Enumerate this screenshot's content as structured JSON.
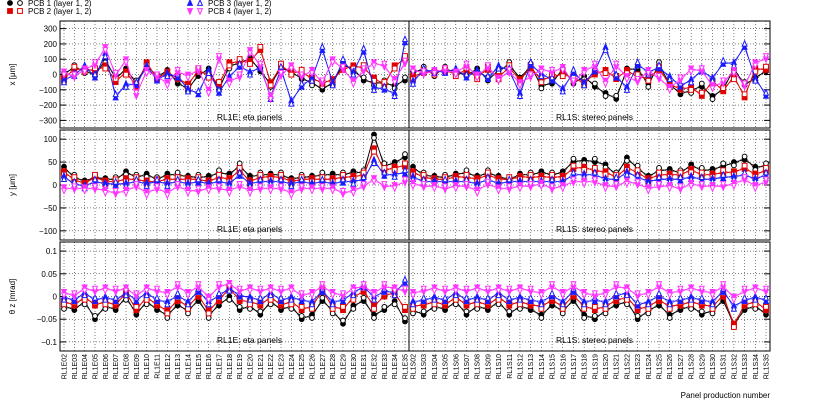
{
  "legend": [
    {
      "label": "PCB 1 (layer 1, 2)",
      "color": "#000000",
      "marker_filled": "circle",
      "marker_open": "circle-open"
    },
    {
      "label": "PCB 2 (layer 1, 2)",
      "color": "#e00000",
      "marker_filled": "square",
      "marker_open": "square-open"
    },
    {
      "label": "PCB 3 (layer 1, 2)",
      "color": "#1a1aff",
      "marker_filled": "triangle-up",
      "marker_open": "triangle-up-open"
    },
    {
      "label": "PCB 4 (layer 1, 2)",
      "color": "#ff33ff",
      "marker_filled": "triangle-down",
      "marker_open": "triangle-down-open"
    }
  ],
  "xlabel": "Panel production number",
  "panel_groups": [
    {
      "label": "RL1E: eta panels"
    },
    {
      "label": "RL1S: stereo panels"
    }
  ],
  "chart_data": [
    {
      "type": "line",
      "ylabel": "x [μm]",
      "ylim": [
        -350,
        350
      ],
      "yticks": [
        -300,
        -200,
        -100,
        0,
        100,
        200,
        300
      ],
      "ytick_labels": [
        "−300",
        "−200",
        "−100",
        "0",
        "100",
        "200",
        "300"
      ],
      "grid": true,
      "annotations": [
        "RL1E: eta panels",
        "RL1S: stereo panels"
      ],
      "categories_eta": [
        "RL1E02",
        "RL1E03",
        "RL1E04",
        "RL1E05",
        "RL1E06",
        "RL1E07",
        "RL1E08",
        "RL1E09",
        "RL1E10",
        "RL1E11",
        "RL1E12",
        "RL1E13",
        "RL1E14",
        "RL1E15",
        "RL1E16",
        "RL1E17",
        "RL1E18",
        "RL1E19",
        "RL1E20",
        "RL1E21",
        "RL1E22",
        "RL1E23",
        "RL1E24",
        "RL1E25",
        "RL1E26",
        "RL1E27",
        "RL1E28",
        "RL1E29",
        "RL1E30",
        "RL1E31",
        "RL1E32",
        "RL1E33",
        "RL1E34",
        "RL1E35"
      ],
      "categories_stereo": [
        "RL1S02",
        "RL1S03",
        "RL1S04",
        "RL1S05",
        "RL1S06",
        "RL1S07",
        "RL1S08",
        "RL1S09",
        "RL1S10",
        "RL1S11",
        "RL1S12",
        "RL1S13",
        "RL1S14",
        "RL1S15",
        "RL1S16",
        "RL1S17",
        "RL1S18",
        "RL1S19",
        "RL1S20",
        "RL1S21",
        "RL1S22",
        "RL1S23",
        "RL1S24",
        "RL1S25",
        "RL1S26",
        "RL1S27",
        "RL1S28",
        "RL1S29",
        "RL1S30",
        "RL1S31",
        "RL1S32",
        "RL1S33",
        "RL1S34",
        "RL1S35"
      ],
      "series": [
        {
          "name": "PCB 1 (layer 1, 2)",
          "color": "#000000",
          "eta": [
            10,
            40,
            30,
            -10,
            100,
            -30,
            40,
            -60,
            70,
            -20,
            30,
            -60,
            -90,
            -10,
            40,
            -100,
            60,
            70,
            110,
            20,
            -60,
            40,
            20,
            -30,
            -50,
            -100,
            -50,
            60,
            40,
            -40,
            -50,
            -60,
            -70,
            -40
          ],
          "stereo": [
            20,
            30,
            10,
            30,
            20,
            -10,
            40,
            -40,
            30,
            60,
            -20,
            50,
            -70,
            -60,
            40,
            -60,
            -10,
            -80,
            -120,
            -160,
            40,
            30,
            -60,
            60,
            -60,
            -130,
            -100,
            -80,
            -140,
            -100,
            40,
            -70,
            -20,
            20
          ]
        },
        {
          "name": "PCB 2 (layer 1, 2)",
          "color": "#e00000",
          "eta": [
            -20,
            30,
            40,
            20,
            60,
            -50,
            20,
            -80,
            80,
            -30,
            20,
            -30,
            -60,
            20,
            0,
            -70,
            80,
            80,
            90,
            160,
            -50,
            50,
            20,
            10,
            -20,
            -60,
            -30,
            30,
            60,
            40,
            -20,
            -70,
            60,
            100
          ],
          "stereo": [
            -10,
            10,
            20,
            20,
            10,
            20,
            -10,
            30,
            -10,
            40,
            -30,
            40,
            -30,
            -20,
            10,
            -30,
            -50,
            0,
            30,
            -30,
            30,
            -20,
            -20,
            30,
            -60,
            -100,
            -80,
            -140,
            -40,
            -110,
            -10,
            -150,
            40,
            30
          ]
        },
        {
          "name": "PCB 3 (layer 1, 2)",
          "color": "#1a1aff",
          "eta": [
            -30,
            -10,
            60,
            -20,
            140,
            -150,
            -60,
            -70,
            60,
            -40,
            10,
            -20,
            -90,
            -130,
            30,
            -120,
            -10,
            50,
            20,
            40,
            -140,
            30,
            -170,
            -80,
            -20,
            160,
            -50,
            80,
            20,
            150,
            -80,
            -100,
            -120,
            210
          ],
          "stereo": [
            -40,
            20,
            30,
            10,
            40,
            -20,
            30,
            -30,
            60,
            20,
            -120,
            60,
            10,
            -40,
            -90,
            10,
            -50,
            20,
            180,
            -20,
            -80,
            60,
            20,
            40,
            -10,
            -80,
            -30,
            20,
            -20,
            70,
            80,
            180,
            -20,
            -140
          ]
        },
        {
          "name": "PCB 4 (layer 1, 2)",
          "color": "#ff33ff",
          "eta": [
            20,
            -20,
            40,
            60,
            180,
            -10,
            100,
            -140,
            30,
            -20,
            -50,
            10,
            0,
            20,
            -100,
            100,
            -40,
            -20,
            160,
            50,
            -140,
            -10,
            60,
            -20,
            30,
            -60,
            100,
            30,
            -40,
            20,
            80,
            50,
            -30,
            70
          ],
          "stereo": [
            40,
            0,
            30,
            20,
            20,
            50,
            0,
            40,
            -20,
            10,
            -50,
            -20,
            40,
            10,
            50,
            -60,
            30,
            50,
            -40,
            50,
            -10,
            -50,
            30,
            -30,
            -80,
            -40,
            40,
            20,
            -70,
            -60,
            30,
            -80,
            80,
            100
          ]
        }
      ]
    },
    {
      "type": "line",
      "ylabel": "y [μm]",
      "ylim": [
        -120,
        120
      ],
      "yticks": [
        -100,
        -50,
        0,
        50,
        100
      ],
      "ytick_labels": [
        "−100",
        "−50",
        "0",
        "50",
        "100"
      ],
      "grid": true,
      "annotations": [
        "RL1E: eta panels",
        "RL1S: stereo panels"
      ],
      "series": [
        {
          "name": "PCB 1 (layer 1, 2)",
          "color": "#000000",
          "eta": [
            40,
            15,
            10,
            15,
            15,
            10,
            30,
            15,
            25,
            10,
            25,
            20,
            20,
            15,
            20,
            25,
            25,
            40,
            20,
            20,
            25,
            20,
            15,
            15,
            20,
            20,
            25,
            20,
            30,
            25,
            110,
            40,
            50,
            60
          ],
          "stereo": [
            40,
            20,
            20,
            15,
            25,
            25,
            20,
            25,
            20,
            10,
            25,
            20,
            30,
            20,
            30,
            50,
            55,
            50,
            45,
            20,
            60,
            35,
            20,
            30,
            35,
            25,
            45,
            30,
            35,
            40,
            50,
            55,
            40,
            40
          ]
        },
        {
          "name": "PCB 2 (layer 1, 2)",
          "color": "#e00000",
          "eta": [
            30,
            10,
            5,
            15,
            10,
            5,
            15,
            10,
            10,
            5,
            15,
            10,
            15,
            10,
            10,
            15,
            15,
            30,
            10,
            15,
            20,
            15,
            10,
            10,
            15,
            10,
            15,
            15,
            20,
            20,
            80,
            30,
            40,
            40
          ],
          "stereo": [
            30,
            15,
            15,
            10,
            20,
            15,
            15,
            20,
            15,
            10,
            20,
            15,
            20,
            15,
            20,
            35,
            40,
            30,
            30,
            15,
            40,
            25,
            15,
            20,
            25,
            20,
            35,
            20,
            25,
            25,
            30,
            35,
            25,
            30
          ]
        },
        {
          "name": "PCB 3 (layer 1, 2)",
          "color": "#1a1aff",
          "eta": [
            20,
            0,
            0,
            5,
            5,
            0,
            5,
            5,
            5,
            5,
            5,
            5,
            5,
            5,
            5,
            5,
            5,
            20,
            5,
            5,
            10,
            5,
            5,
            5,
            5,
            5,
            5,
            5,
            10,
            10,
            55,
            20,
            25,
            25
          ],
          "stereo": [
            20,
            5,
            10,
            5,
            10,
            5,
            5,
            10,
            5,
            5,
            10,
            5,
            10,
            5,
            10,
            20,
            25,
            20,
            15,
            10,
            30,
            15,
            10,
            10,
            15,
            10,
            20,
            10,
            15,
            15,
            20,
            20,
            15,
            20
          ]
        },
        {
          "name": "PCB 4 (layer 1, 2)",
          "color": "#ff33ff",
          "eta": [
            -5,
            -10,
            -5,
            -10,
            -10,
            -20,
            -10,
            -5,
            -15,
            -10,
            -15,
            -5,
            -10,
            -15,
            -5,
            -10,
            -10,
            -5,
            -10,
            -10,
            -5,
            -10,
            -15,
            -10,
            -5,
            -10,
            -5,
            -20,
            -10,
            -5,
            15,
            -5,
            0,
            5
          ],
          "stereo": [
            5,
            -5,
            0,
            -10,
            0,
            -5,
            -10,
            0,
            -5,
            -10,
            0,
            -5,
            5,
            -10,
            0,
            5,
            10,
            5,
            0,
            -5,
            10,
            0,
            -5,
            -5,
            0,
            -10,
            5,
            -5,
            0,
            -5,
            5,
            10,
            0,
            5
          ]
        }
      ]
    },
    {
      "type": "line",
      "ylabel": "θ z [mrad]",
      "ylim": [
        -0.12,
        0.12
      ],
      "yticks": [
        -0.1,
        -0.05,
        0,
        0.05,
        0.1
      ],
      "ytick_labels": [
        "−0.1",
        "−0.05",
        "0",
        "0.05",
        "0.1"
      ],
      "grid": true,
      "annotations": [
        "RL1E: eta panels",
        "RL1S: stereo panels"
      ],
      "series": [
        {
          "name": "PCB 1 (layer 1, 2)",
          "color": "#000000",
          "eta": [
            -0.02,
            -0.03,
            -0.01,
            -0.05,
            -0.02,
            -0.03,
            0.0,
            -0.04,
            -0.01,
            -0.03,
            -0.04,
            -0.02,
            -0.03,
            -0.01,
            -0.04,
            -0.02,
            0.0,
            -0.03,
            -0.02,
            -0.04,
            -0.01,
            -0.03,
            -0.02,
            -0.05,
            -0.04,
            -0.01,
            -0.03,
            -0.06,
            -0.02,
            -0.01,
            -0.04,
            -0.03,
            -0.01,
            -0.055
          ],
          "stereo": [
            -0.03,
            -0.04,
            -0.02,
            -0.03,
            -0.01,
            -0.04,
            -0.02,
            -0.03,
            -0.01,
            -0.04,
            -0.02,
            -0.03,
            -0.04,
            -0.02,
            -0.03,
            -0.01,
            -0.04,
            -0.05,
            -0.03,
            -0.02,
            -0.01,
            -0.05,
            -0.03,
            -0.02,
            -0.04,
            -0.03,
            -0.02,
            -0.04,
            -0.03,
            -0.01,
            -0.06,
            -0.03,
            -0.02,
            -0.04
          ]
        },
        {
          "name": "PCB 2 (layer 1, 2)",
          "color": "#e00000",
          "eta": [
            -0.01,
            -0.02,
            0.0,
            -0.02,
            -0.01,
            -0.02,
            0.01,
            -0.03,
            0.0,
            -0.02,
            -0.03,
            -0.01,
            -0.02,
            0.0,
            -0.03,
            -0.01,
            0.02,
            -0.01,
            -0.01,
            -0.02,
            0.0,
            -0.02,
            -0.01,
            -0.03,
            -0.02,
            0.01,
            -0.02,
            -0.03,
            0.0,
            0.01,
            -0.02,
            0.0,
            0.01,
            -0.03
          ],
          "stereo": [
            -0.02,
            -0.02,
            -0.01,
            -0.02,
            0.0,
            -0.02,
            -0.01,
            -0.02,
            0.0,
            -0.02,
            -0.01,
            -0.02,
            -0.02,
            -0.01,
            -0.02,
            0.0,
            -0.02,
            -0.03,
            -0.02,
            -0.01,
            0.0,
            -0.03,
            -0.02,
            -0.01,
            -0.02,
            -0.02,
            -0.01,
            -0.02,
            -0.02,
            0.0,
            -0.06,
            -0.02,
            -0.01,
            -0.03
          ]
        },
        {
          "name": "PCB 3 (layer 1, 2)",
          "color": "#1a1aff",
          "eta": [
            0.0,
            -0.01,
            0.01,
            -0.01,
            0.0,
            -0.01,
            0.01,
            -0.01,
            0.01,
            -0.01,
            -0.01,
            0.0,
            -0.01,
            0.01,
            -0.01,
            0.0,
            0.02,
            0.0,
            0.0,
            -0.01,
            0.01,
            -0.01,
            0.0,
            -0.01,
            -0.01,
            0.01,
            -0.01,
            -0.01,
            0.01,
            0.02,
            0.0,
            0.01,
            0.01,
            0.03
          ],
          "stereo": [
            -0.01,
            -0.01,
            0.0,
            -0.01,
            0.01,
            -0.01,
            0.0,
            -0.01,
            0.01,
            -0.01,
            0.0,
            -0.01,
            -0.01,
            0.0,
            -0.01,
            0.01,
            -0.01,
            -0.01,
            -0.01,
            0.0,
            0.01,
            -0.02,
            -0.01,
            0.0,
            -0.01,
            -0.01,
            0.0,
            -0.01,
            -0.01,
            0.01,
            -0.02,
            -0.01,
            0.0,
            -0.01
          ]
        },
        {
          "name": "PCB 4 (layer 1, 2)",
          "color": "#ff33ff",
          "eta": [
            0.01,
            0.0,
            0.02,
            0.01,
            0.02,
            0.01,
            0.02,
            0.0,
            0.02,
            0.01,
            0.01,
            0.02,
            0.01,
            0.02,
            0.0,
            0.02,
            0.03,
            0.01,
            0.02,
            0.01,
            0.02,
            0.01,
            0.02,
            0.0,
            0.01,
            0.02,
            0.01,
            0.0,
            0.02,
            0.02,
            0.01,
            0.02,
            0.02,
            0.01
          ],
          "stereo": [
            0.01,
            0.01,
            0.02,
            0.01,
            0.02,
            0.01,
            0.02,
            0.01,
            0.02,
            0.01,
            0.02,
            0.01,
            0.01,
            0.02,
            0.01,
            0.02,
            0.01,
            0.0,
            0.01,
            0.02,
            0.02,
            0.0,
            0.01,
            0.02,
            0.01,
            0.01,
            0.02,
            0.01,
            0.01,
            0.02,
            0.0,
            0.01,
            0.02,
            0.01
          ]
        }
      ]
    }
  ]
}
